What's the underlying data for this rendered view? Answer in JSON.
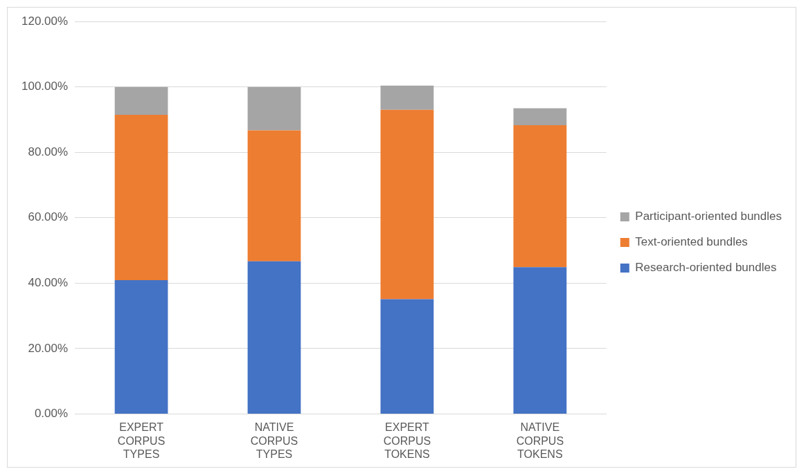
{
  "chart_data": {
    "type": "bar",
    "stacked": true,
    "categories": [
      "EXPERT CORPUS TYPES",
      "NATIVE CORPUS TYPES",
      "EXPERT CORPUS TOKENS",
      "NATIVE CORPUS TOKENS"
    ],
    "series": [
      {
        "name": "Research-oriented bundles",
        "color": "#4472c4",
        "values": [
          40.9,
          46.7,
          35.1,
          44.9
        ]
      },
      {
        "name": "Text-oriented bundles",
        "color": "#ed7d31",
        "values": [
          50.6,
          40.0,
          57.9,
          43.4
        ]
      },
      {
        "name": "Participant-oriented bundles",
        "color": "#a5a5a5",
        "values": [
          8.5,
          13.3,
          7.4,
          5.2
        ]
      }
    ],
    "ylim": [
      0,
      120
    ],
    "yticks": [
      {
        "value": 0,
        "label": "0.00%"
      },
      {
        "value": 20,
        "label": "20.00%"
      },
      {
        "value": 40,
        "label": "40.00%"
      },
      {
        "value": 60,
        "label": "60.00%"
      },
      {
        "value": 80,
        "label": "80.00%"
      },
      {
        "value": 100,
        "label": "100.00%"
      },
      {
        "value": 120,
        "label": "120.00%"
      }
    ],
    "grid": "y",
    "legend": "right"
  }
}
